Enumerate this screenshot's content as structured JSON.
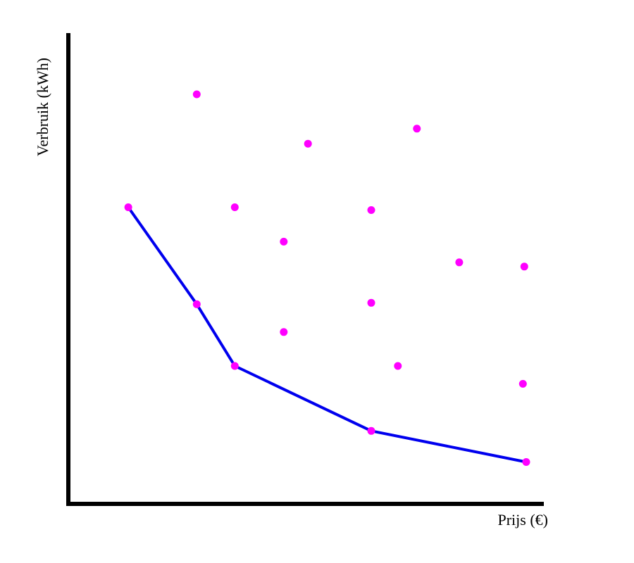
{
  "chart_data": {
    "type": "scatter",
    "title": "",
    "xlabel": "Prijs (€)",
    "ylabel": "Verbruik (kWh)",
    "xlim": [
      0,
      100
    ],
    "ylim": [
      0,
      100
    ],
    "grid": false,
    "legend": "none",
    "colors": {
      "points": "#ff00ff",
      "line": "#0000ee",
      "axes": "#000000"
    },
    "points": [
      {
        "x": 12.6,
        "y": 63
      },
      {
        "x": 27,
        "y": 87
      },
      {
        "x": 27,
        "y": 42.4
      },
      {
        "x": 35,
        "y": 63
      },
      {
        "x": 35,
        "y": 29.3
      },
      {
        "x": 45.3,
        "y": 55.7
      },
      {
        "x": 45.3,
        "y": 36.5
      },
      {
        "x": 50.4,
        "y": 76.5
      },
      {
        "x": 63.7,
        "y": 62.4
      },
      {
        "x": 63.7,
        "y": 42.7
      },
      {
        "x": 63.7,
        "y": 15.5
      },
      {
        "x": 69.3,
        "y": 29.3
      },
      {
        "x": 73.3,
        "y": 79.7
      },
      {
        "x": 82.2,
        "y": 51.3
      },
      {
        "x": 95.6,
        "y": 25.5
      },
      {
        "x": 95.9,
        "y": 50.4
      },
      {
        "x": 96.3,
        "y": 8.9
      }
    ],
    "series": [
      {
        "type": "line",
        "x": [
          12.6,
          27,
          35,
          63.7,
          96.3
        ],
        "y": [
          63,
          42.4,
          29.3,
          15.5,
          8.9
        ]
      }
    ]
  }
}
